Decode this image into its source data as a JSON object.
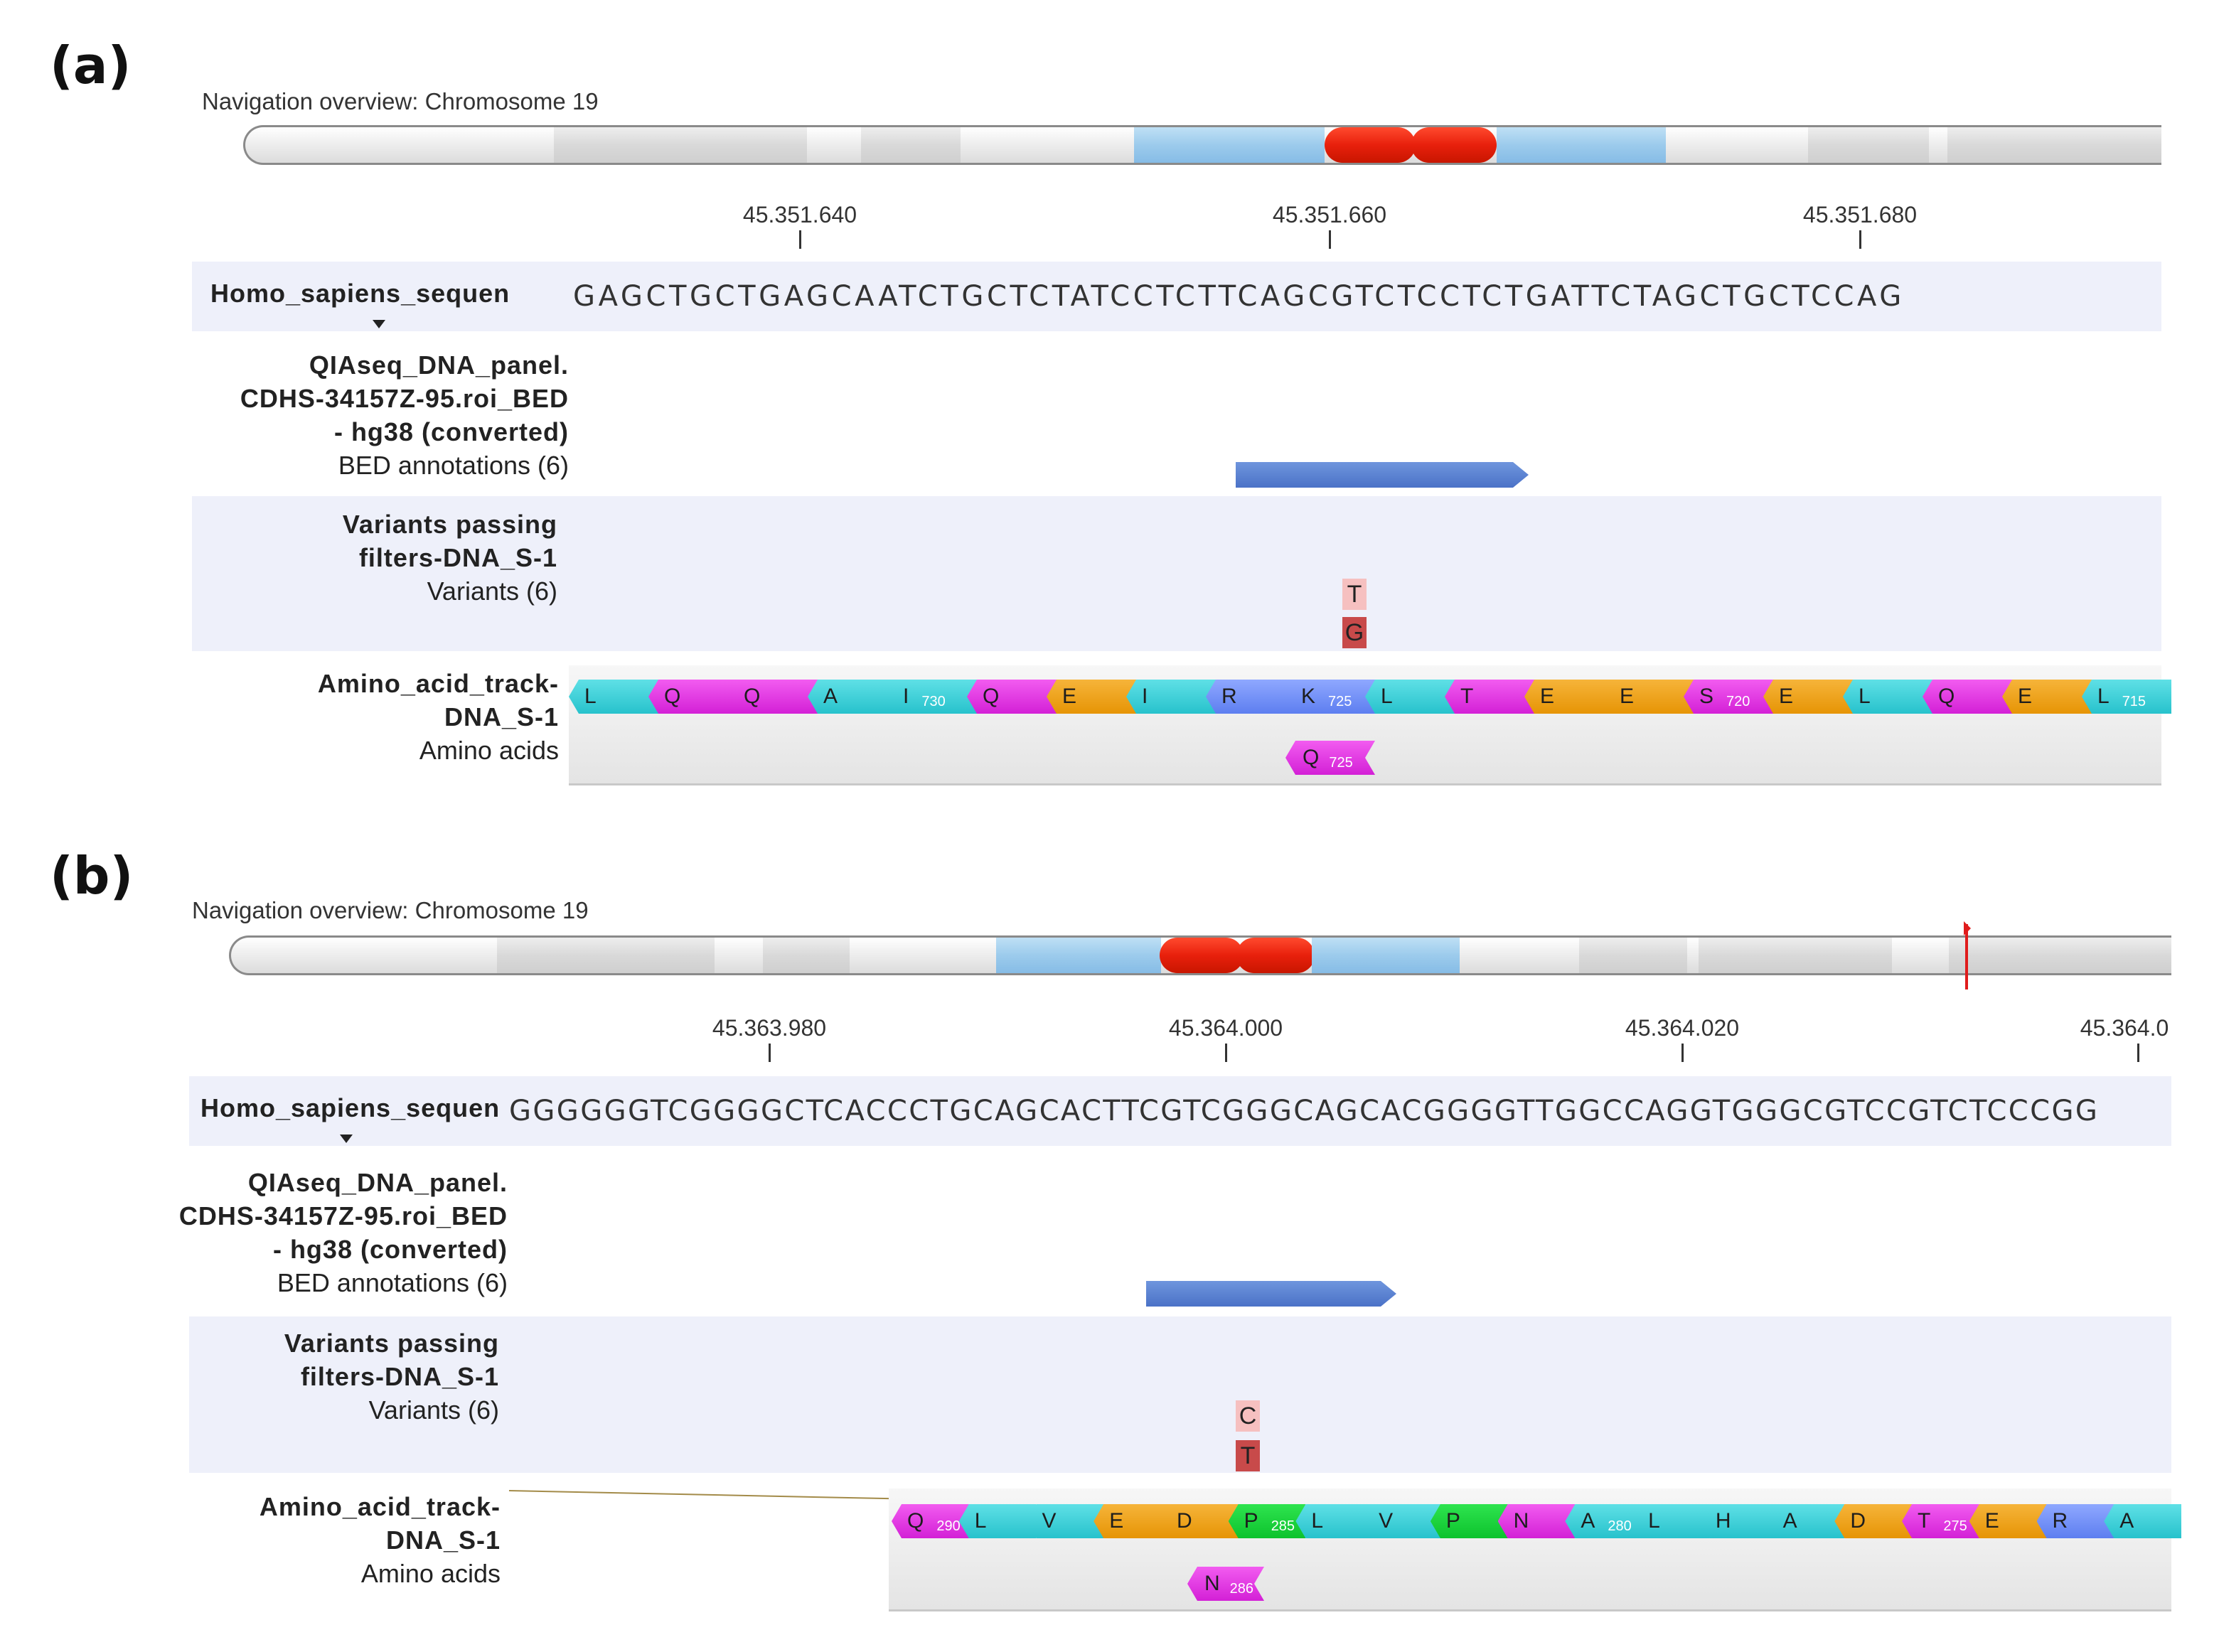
{
  "panels": [
    {
      "label": "(a)",
      "navigation_title": "Navigation overview: Chromosome 19",
      "ruler_labels": [
        "45.351.640",
        "45.351.660",
        "45.351.680"
      ],
      "sequence_name": "Homo_sapiens_sequen",
      "sequence": "GAGCTGCTGAGCAATCTGCTCTATCCTCTTCAGCGTCTCCTCTGATTCTAGCTGCTCCAG",
      "bed_track": {
        "name_lines": [
          "QIAseq_DNA_panel.",
          "CDHS-34157Z-95.roi_BED",
          "- hg38 (converted)"
        ],
        "sub": "BED annotations (6)"
      },
      "variant_track": {
        "name_lines": [
          "Variants passing",
          "filters-DNA_S-1"
        ],
        "sub": "Variants (6)",
        "alt": "T",
        "ref": "G"
      },
      "aa_track": {
        "name_lines": [
          "Amino_acid_track-",
          "DNA_S-1"
        ],
        "sub": "Amino acids",
        "residues": [
          {
            "aa": "L",
            "num": "",
            "color": "cyan"
          },
          {
            "aa": "Q",
            "num": "",
            "color": "mag"
          },
          {
            "aa": "Q",
            "num": "",
            "color": "mag"
          },
          {
            "aa": "A",
            "num": "",
            "color": "cyan"
          },
          {
            "aa": "I",
            "num": "730",
            "color": "cyan"
          },
          {
            "aa": "Q",
            "num": "",
            "color": "mag"
          },
          {
            "aa": "E",
            "num": "",
            "color": "orange"
          },
          {
            "aa": "I",
            "num": "",
            "color": "cyan"
          },
          {
            "aa": "R",
            "num": "",
            "color": "blue"
          },
          {
            "aa": "K",
            "num": "725",
            "color": "blue"
          },
          {
            "aa": "L",
            "num": "",
            "color": "cyan"
          },
          {
            "aa": "T",
            "num": "",
            "color": "mag"
          },
          {
            "aa": "E",
            "num": "",
            "color": "orange"
          },
          {
            "aa": "E",
            "num": "",
            "color": "orange"
          },
          {
            "aa": "S",
            "num": "720",
            "color": "mag"
          },
          {
            "aa": "E",
            "num": "",
            "color": "orange"
          },
          {
            "aa": "L",
            "num": "",
            "color": "cyan"
          },
          {
            "aa": "Q",
            "num": "",
            "color": "mag"
          },
          {
            "aa": "E",
            "num": "",
            "color": "orange"
          },
          {
            "aa": "L",
            "num": "715",
            "color": "cyan"
          }
        ],
        "mutant": {
          "aa": "Q",
          "num": "725"
        }
      }
    },
    {
      "label": "(b)",
      "navigation_title": "Navigation overview: Chromosome 19",
      "ruler_labels": [
        "45.363.980",
        "45.364.000",
        "45.364.020",
        "45.364.0"
      ],
      "sequence_name": "Homo_sapiens_sequen",
      "sequence": "GGGGGGTCGGGGCTCACCCTGCAGCACTTCGTCGGGCAGCACGGGGTTGGCCAGGTGGGCGTCCGTCTCCCGG",
      "bed_track": {
        "name_lines": [
          "QIAseq_DNA_panel.",
          "CDHS-34157Z-95.roi_BED",
          "- hg38 (converted)"
        ],
        "sub": "BED annotations (6)"
      },
      "variant_track": {
        "name_lines": [
          "Variants passing",
          "filters-DNA_S-1"
        ],
        "sub": "Variants (6)",
        "alt": "C",
        "ref": "T"
      },
      "aa_track": {
        "name_lines": [
          "Amino_acid_track-",
          "DNA_S-1"
        ],
        "sub": "Amino acids",
        "residues": [
          {
            "aa": "Q",
            "num": "290",
            "color": "mag"
          },
          {
            "aa": "L",
            "num": "",
            "color": "cyan"
          },
          {
            "aa": "V",
            "num": "",
            "color": "cyan"
          },
          {
            "aa": "E",
            "num": "",
            "color": "orange"
          },
          {
            "aa": "D",
            "num": "",
            "color": "orange"
          },
          {
            "aa": "P",
            "num": "285",
            "color": "green"
          },
          {
            "aa": "L",
            "num": "",
            "color": "cyan"
          },
          {
            "aa": "V",
            "num": "",
            "color": "cyan"
          },
          {
            "aa": "P",
            "num": "",
            "color": "green"
          },
          {
            "aa": "N",
            "num": "",
            "color": "mag"
          },
          {
            "aa": "A",
            "num": "280",
            "color": "cyan"
          },
          {
            "aa": "L",
            "num": "",
            "color": "cyan"
          },
          {
            "aa": "H",
            "num": "",
            "color": "cyan"
          },
          {
            "aa": "A",
            "num": "",
            "color": "cyan"
          },
          {
            "aa": "D",
            "num": "",
            "color": "orange"
          },
          {
            "aa": "T",
            "num": "275",
            "color": "mag"
          },
          {
            "aa": "E",
            "num": "",
            "color": "orange"
          },
          {
            "aa": "R",
            "num": "",
            "color": "blue"
          },
          {
            "aa": "A",
            "num": "",
            "color": "cyan"
          }
        ],
        "mutant": {
          "aa": "N",
          "num": "286"
        }
      }
    }
  ]
}
